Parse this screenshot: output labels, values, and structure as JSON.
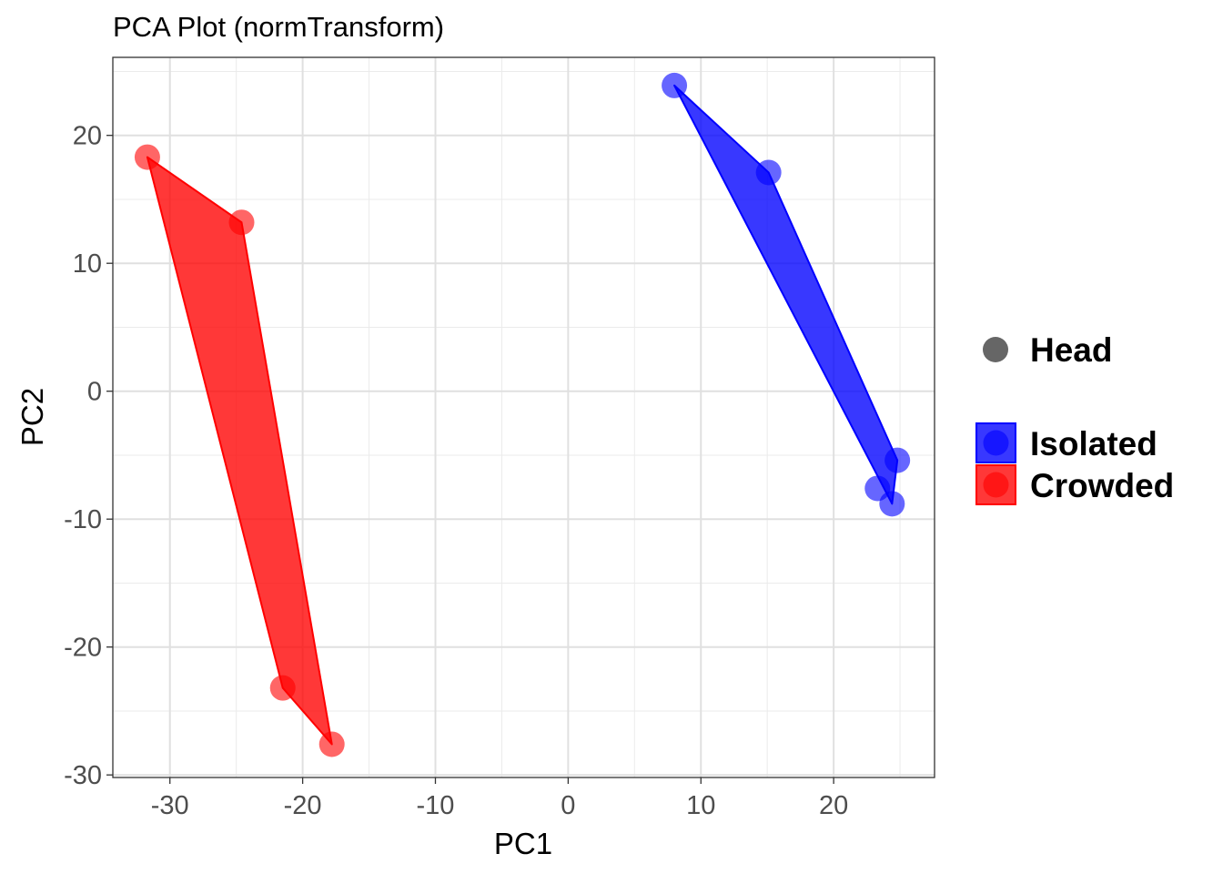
{
  "chart_data": {
    "type": "scatter",
    "title": "PCA Plot (normTransform)",
    "xlabel": "PC1",
    "ylabel": "PC2",
    "xlim": [
      -34.3,
      27.6
    ],
    "ylim": [
      -30.2,
      26.1
    ],
    "x_ticks": [
      "-30",
      "-20",
      "-10",
      "0",
      "10",
      "20"
    ],
    "y_ticks": [
      "-30",
      "-20",
      "-10",
      "0",
      "10",
      "20"
    ],
    "grid": true,
    "legend_position": "right",
    "shape_legend": {
      "label": "Head",
      "color": "#666666"
    },
    "series": [
      {
        "name": "Isolated",
        "color": "#0000ff",
        "points": [
          {
            "x": 8.0,
            "y": 23.9
          },
          {
            "x": 15.1,
            "y": 17.1
          },
          {
            "x": 24.8,
            "y": -5.4
          },
          {
            "x": 23.3,
            "y": -7.6
          },
          {
            "x": 24.4,
            "y": -8.8
          }
        ],
        "hull": [
          {
            "x": 8.0,
            "y": 23.9
          },
          {
            "x": 15.1,
            "y": 17.1
          },
          {
            "x": 24.8,
            "y": -5.4
          },
          {
            "x": 24.4,
            "y": -8.8
          }
        ]
      },
      {
        "name": "Crowded",
        "color": "#ff0000",
        "points": [
          {
            "x": -31.7,
            "y": 18.3
          },
          {
            "x": -24.6,
            "y": 13.2
          },
          {
            "x": -21.5,
            "y": -23.2
          },
          {
            "x": -17.8,
            "y": -27.6
          }
        ],
        "hull": [
          {
            "x": -31.7,
            "y": 18.3
          },
          {
            "x": -24.6,
            "y": 13.2
          },
          {
            "x": -17.8,
            "y": -27.6
          },
          {
            "x": -21.5,
            "y": -23.2
          }
        ]
      }
    ]
  }
}
